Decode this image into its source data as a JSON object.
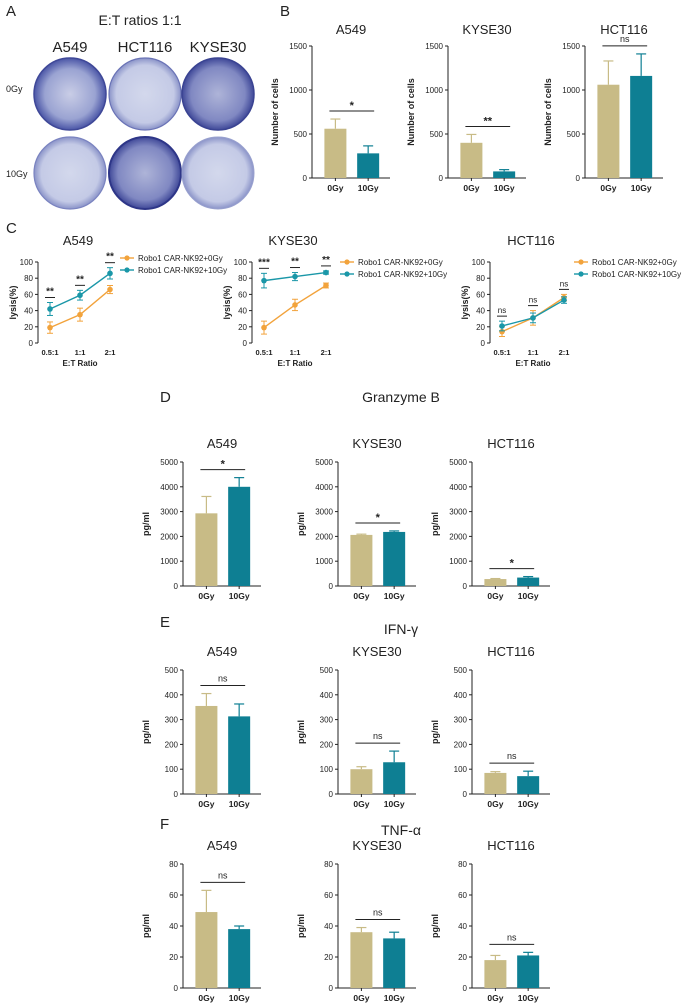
{
  "panel_A": {
    "letter": "A",
    "title": "E:T ratios 1:1",
    "columns": [
      "A549",
      "HCT116",
      "KYSE30"
    ],
    "rows": [
      "0Gy",
      "10Gy"
    ]
  },
  "panel_letters": {
    "B": "B",
    "C": "C",
    "D": "D",
    "E": "E",
    "F": "F"
  },
  "colors": {
    "gy0_bar": "#c8bb86",
    "gy10_bar": "#0e7f93",
    "gy0_line": "#f2a33c",
    "gy10_line": "#1a97a8",
    "dish": "#5a66b2"
  },
  "section_titles": {
    "D": "Granzyme B",
    "E": "IFN-γ",
    "F": "TNF-α"
  },
  "chart_data": [
    {
      "id": "B1",
      "type": "bar",
      "title": "A549",
      "ylabel": "Number of cells",
      "categories": [
        "0Gy",
        "10Gy"
      ],
      "values": [
        560,
        280
      ],
      "errors": [
        110,
        85
      ],
      "ylim": [
        0,
        1500
      ],
      "yticks": [
        0,
        500,
        1000,
        1500
      ],
      "sig": "*"
    },
    {
      "id": "B2",
      "type": "bar",
      "title": "KYSE30",
      "ylabel": "Number of cells",
      "categories": [
        "0Gy",
        "10Gy"
      ],
      "values": [
        400,
        75
      ],
      "errors": [
        95,
        20
      ],
      "ylim": [
        0,
        1500
      ],
      "yticks": [
        0,
        500,
        1000,
        1500
      ],
      "sig": "**"
    },
    {
      "id": "B3",
      "type": "bar",
      "title": "HCT116",
      "ylabel": "Number of cells",
      "categories": [
        "0Gy",
        "10Gy"
      ],
      "values": [
        1060,
        1160
      ],
      "errors": [
        270,
        250
      ],
      "ylim": [
        0,
        1500
      ],
      "yticks": [
        0,
        500,
        1000,
        1500
      ],
      "sig": "ns"
    },
    {
      "id": "C1",
      "type": "line",
      "title": "A549",
      "ylabel": "lysis(%)",
      "xlabel": "E:T Ratio",
      "categories": [
        "0.5:1",
        "1:1",
        "2:1"
      ],
      "ylim": [
        0,
        100
      ],
      "yticks": [
        0,
        20,
        40,
        60,
        80,
        100
      ],
      "series": [
        {
          "name": "Robo1 CAR-NK92+0Gy",
          "values": [
            19,
            35,
            66
          ],
          "errors": [
            7,
            8,
            5
          ]
        },
        {
          "name": "Robo1 CAR-NK92+10Gy",
          "values": [
            42,
            59,
            86
          ],
          "errors": [
            8,
            6,
            7
          ]
        }
      ],
      "sig": [
        "**",
        "**",
        "**"
      ]
    },
    {
      "id": "C2",
      "type": "line",
      "title": "KYSE30",
      "ylabel": "lysis(%)",
      "xlabel": "E:T Ratio",
      "categories": [
        "0.5:1",
        "1:1",
        "2:1"
      ],
      "ylim": [
        0,
        100
      ],
      "yticks": [
        0,
        20,
        40,
        60,
        80,
        100
      ],
      "series": [
        {
          "name": "Robo1 CAR-NK92+0Gy",
          "values": [
            19,
            47,
            71
          ],
          "errors": [
            8,
            7,
            3
          ]
        },
        {
          "name": "Robo1 CAR-NK92+10Gy",
          "values": [
            77,
            82,
            87
          ],
          "errors": [
            9,
            5,
            2
          ]
        }
      ],
      "sig": [
        "***",
        "**",
        "**"
      ]
    },
    {
      "id": "C3",
      "type": "line",
      "title": "HCT116",
      "ylabel": "lysis(%)",
      "xlabel": "E:T Ratio",
      "categories": [
        "0.5:1",
        "1:1",
        "2:1"
      ],
      "ylim": [
        0,
        100
      ],
      "yticks": [
        0,
        20,
        40,
        60,
        80,
        100
      ],
      "series": [
        {
          "name": "Robo1 CAR-NK92+0Gy",
          "values": [
            14,
            31,
            56
          ],
          "errors": [
            6,
            9,
            4
          ]
        },
        {
          "name": "Robo1 CAR-NK92+10Gy",
          "values": [
            21,
            31,
            53
          ],
          "errors": [
            6,
            6,
            4
          ]
        }
      ],
      "sig": [
        "ns",
        "ns",
        "ns"
      ]
    },
    {
      "id": "D1",
      "type": "bar",
      "title": "A549",
      "ylabel": "pg/ml",
      "categories": [
        "0Gy",
        "10Gy"
      ],
      "values": [
        2930,
        4000
      ],
      "errors": [
        680,
        370
      ],
      "ylim": [
        0,
        5000
      ],
      "yticks": [
        0,
        1000,
        2000,
        3000,
        4000,
        5000
      ],
      "sig": "*"
    },
    {
      "id": "D2",
      "type": "bar",
      "title": "KYSE30",
      "ylabel": "pg/ml",
      "categories": [
        "0Gy",
        "10Gy"
      ],
      "values": [
        2060,
        2180
      ],
      "errors": [
        30,
        40
      ],
      "ylim": [
        0,
        5000
      ],
      "yticks": [
        0,
        1000,
        2000,
        3000,
        4000,
        5000
      ],
      "sig": "*"
    },
    {
      "id": "D3",
      "type": "bar",
      "title": "HCT116",
      "ylabel": "pg/ml",
      "categories": [
        "0Gy",
        "10Gy"
      ],
      "values": [
        280,
        340
      ],
      "errors": [
        20,
        40
      ],
      "ylim": [
        0,
        5000
      ],
      "yticks": [
        0,
        1000,
        2000,
        3000,
        4000,
        5000
      ],
      "sig": "*"
    },
    {
      "id": "E1",
      "type": "bar",
      "title": "A549",
      "ylabel": "pg/ml",
      "categories": [
        "0Gy",
        "10Gy"
      ],
      "values": [
        355,
        313
      ],
      "errors": [
        50,
        50
      ],
      "ylim": [
        0,
        500
      ],
      "yticks": [
        0,
        100,
        200,
        300,
        400,
        500
      ],
      "sig": "ns"
    },
    {
      "id": "E2",
      "type": "bar",
      "title": "KYSE30",
      "ylabel": "pg/ml",
      "categories": [
        "0Gy",
        "10Gy"
      ],
      "values": [
        100,
        128
      ],
      "errors": [
        10,
        45
      ],
      "ylim": [
        0,
        500
      ],
      "yticks": [
        0,
        100,
        200,
        300,
        400,
        500
      ],
      "sig": "ns"
    },
    {
      "id": "E3",
      "type": "bar",
      "title": "HCT116",
      "ylabel": "pg/ml",
      "categories": [
        "0Gy",
        "10Gy"
      ],
      "values": [
        85,
        72
      ],
      "errors": [
        5,
        20
      ],
      "ylim": [
        0,
        500
      ],
      "yticks": [
        0,
        100,
        200,
        300,
        400,
        500
      ],
      "sig": "ns"
    },
    {
      "id": "F1",
      "type": "bar",
      "title": "A549",
      "ylabel": "pg/ml",
      "categories": [
        "0Gy",
        "10Gy"
      ],
      "values": [
        49,
        38
      ],
      "errors": [
        14,
        2
      ],
      "ylim": [
        0,
        80
      ],
      "yticks": [
        0,
        20,
        40,
        60,
        80
      ],
      "sig": "ns"
    },
    {
      "id": "F2",
      "type": "bar",
      "title": "KYSE30",
      "ylabel": "pg/ml",
      "categories": [
        "0Gy",
        "10Gy"
      ],
      "values": [
        36,
        32
      ],
      "errors": [
        3,
        4
      ],
      "ylim": [
        0,
        80
      ],
      "yticks": [
        0,
        20,
        40,
        60,
        80
      ],
      "sig": "ns"
    },
    {
      "id": "F3",
      "type": "bar",
      "title": "HCT116",
      "ylabel": "pg/ml",
      "categories": [
        "0Gy",
        "10Gy"
      ],
      "values": [
        18,
        21
      ],
      "errors": [
        3,
        2
      ],
      "ylim": [
        0,
        80
      ],
      "yticks": [
        0,
        20,
        40,
        60,
        80
      ],
      "sig": "ns"
    }
  ]
}
